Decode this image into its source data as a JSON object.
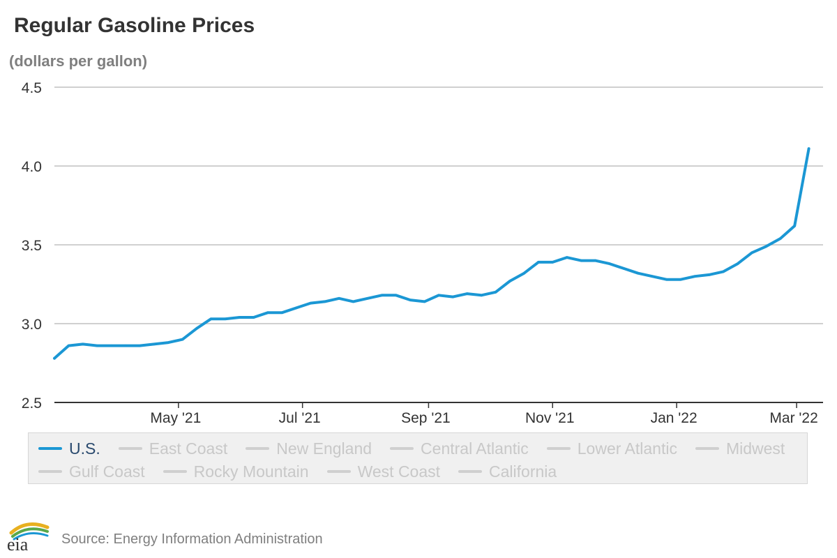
{
  "header": {
    "title": "Regular Gasoline Prices",
    "subtitle": "(dollars per gallon)"
  },
  "chart_data": {
    "type": "line",
    "title": "Regular Gasoline Prices",
    "ylabel": "(dollars per gallon)",
    "xlabel": "",
    "ylim": [
      2.5,
      4.5
    ],
    "yticks": [
      "4.5",
      "4.0",
      "3.5",
      "3.0",
      "2.5"
    ],
    "xlim": [
      "2021-03-01",
      "2022-03-14"
    ],
    "xticks": [
      {
        "date": "2021-05-01",
        "label": "May '21"
      },
      {
        "date": "2021-07-01",
        "label": "Jul '21"
      },
      {
        "date": "2021-09-01",
        "label": "Sep '21"
      },
      {
        "date": "2021-11-01",
        "label": "Nov '21"
      },
      {
        "date": "2022-01-01",
        "label": "Jan '22"
      },
      {
        "date": "2022-03-01",
        "label": "Mar '22"
      }
    ],
    "grid": true,
    "legend_position": "bottom",
    "colors": {
      "us": "#1b97d4",
      "inactive": "#cfcfcf",
      "grid": "#c0c0c0",
      "axis": "#333333"
    },
    "series": [
      {
        "name": "U.S.",
        "x": [
          "2021-03-01",
          "2021-03-08",
          "2021-03-15",
          "2021-03-22",
          "2021-03-29",
          "2021-04-05",
          "2021-04-12",
          "2021-04-19",
          "2021-04-26",
          "2021-05-03",
          "2021-05-10",
          "2021-05-17",
          "2021-05-24",
          "2021-05-31",
          "2021-06-07",
          "2021-06-14",
          "2021-06-21",
          "2021-06-28",
          "2021-07-05",
          "2021-07-12",
          "2021-07-19",
          "2021-07-26",
          "2021-08-02",
          "2021-08-09",
          "2021-08-16",
          "2021-08-23",
          "2021-08-30",
          "2021-09-06",
          "2021-09-13",
          "2021-09-20",
          "2021-09-27",
          "2021-10-04",
          "2021-10-11",
          "2021-10-18",
          "2021-10-25",
          "2021-11-01",
          "2021-11-08",
          "2021-11-15",
          "2021-11-22",
          "2021-11-29",
          "2021-12-06",
          "2021-12-13",
          "2021-12-20",
          "2021-12-27",
          "2022-01-03",
          "2022-01-10",
          "2022-01-17",
          "2022-01-24",
          "2022-01-31",
          "2022-02-07",
          "2022-02-14",
          "2022-02-21",
          "2022-02-28",
          "2022-03-07"
        ],
        "values": [
          2.78,
          2.86,
          2.87,
          2.86,
          2.86,
          2.86,
          2.86,
          2.87,
          2.88,
          2.9,
          2.97,
          3.03,
          3.03,
          3.04,
          3.04,
          3.07,
          3.07,
          3.1,
          3.13,
          3.14,
          3.16,
          3.14,
          3.16,
          3.18,
          3.18,
          3.15,
          3.14,
          3.18,
          3.17,
          3.19,
          3.18,
          3.2,
          3.27,
          3.32,
          3.39,
          3.39,
          3.42,
          3.4,
          3.4,
          3.38,
          3.35,
          3.32,
          3.3,
          3.28,
          3.28,
          3.3,
          3.31,
          3.33,
          3.38,
          3.45,
          3.49,
          3.54,
          3.62,
          4.11
        ]
      }
    ]
  },
  "legend": {
    "items": [
      {
        "label": "U.S.",
        "active": true
      },
      {
        "label": "East Coast",
        "active": false
      },
      {
        "label": "New England",
        "active": false
      },
      {
        "label": "Central Atlantic",
        "active": false
      },
      {
        "label": "Lower Atlantic",
        "active": false
      },
      {
        "label": "Midwest",
        "active": false
      },
      {
        "label": "Gulf Coast",
        "active": false
      },
      {
        "label": "Rocky Mountain",
        "active": false
      },
      {
        "label": "West Coast",
        "active": false
      },
      {
        "label": "California",
        "active": false
      }
    ]
  },
  "footer": {
    "logo_text": "eia",
    "source": "Source: Energy Information Administration"
  }
}
